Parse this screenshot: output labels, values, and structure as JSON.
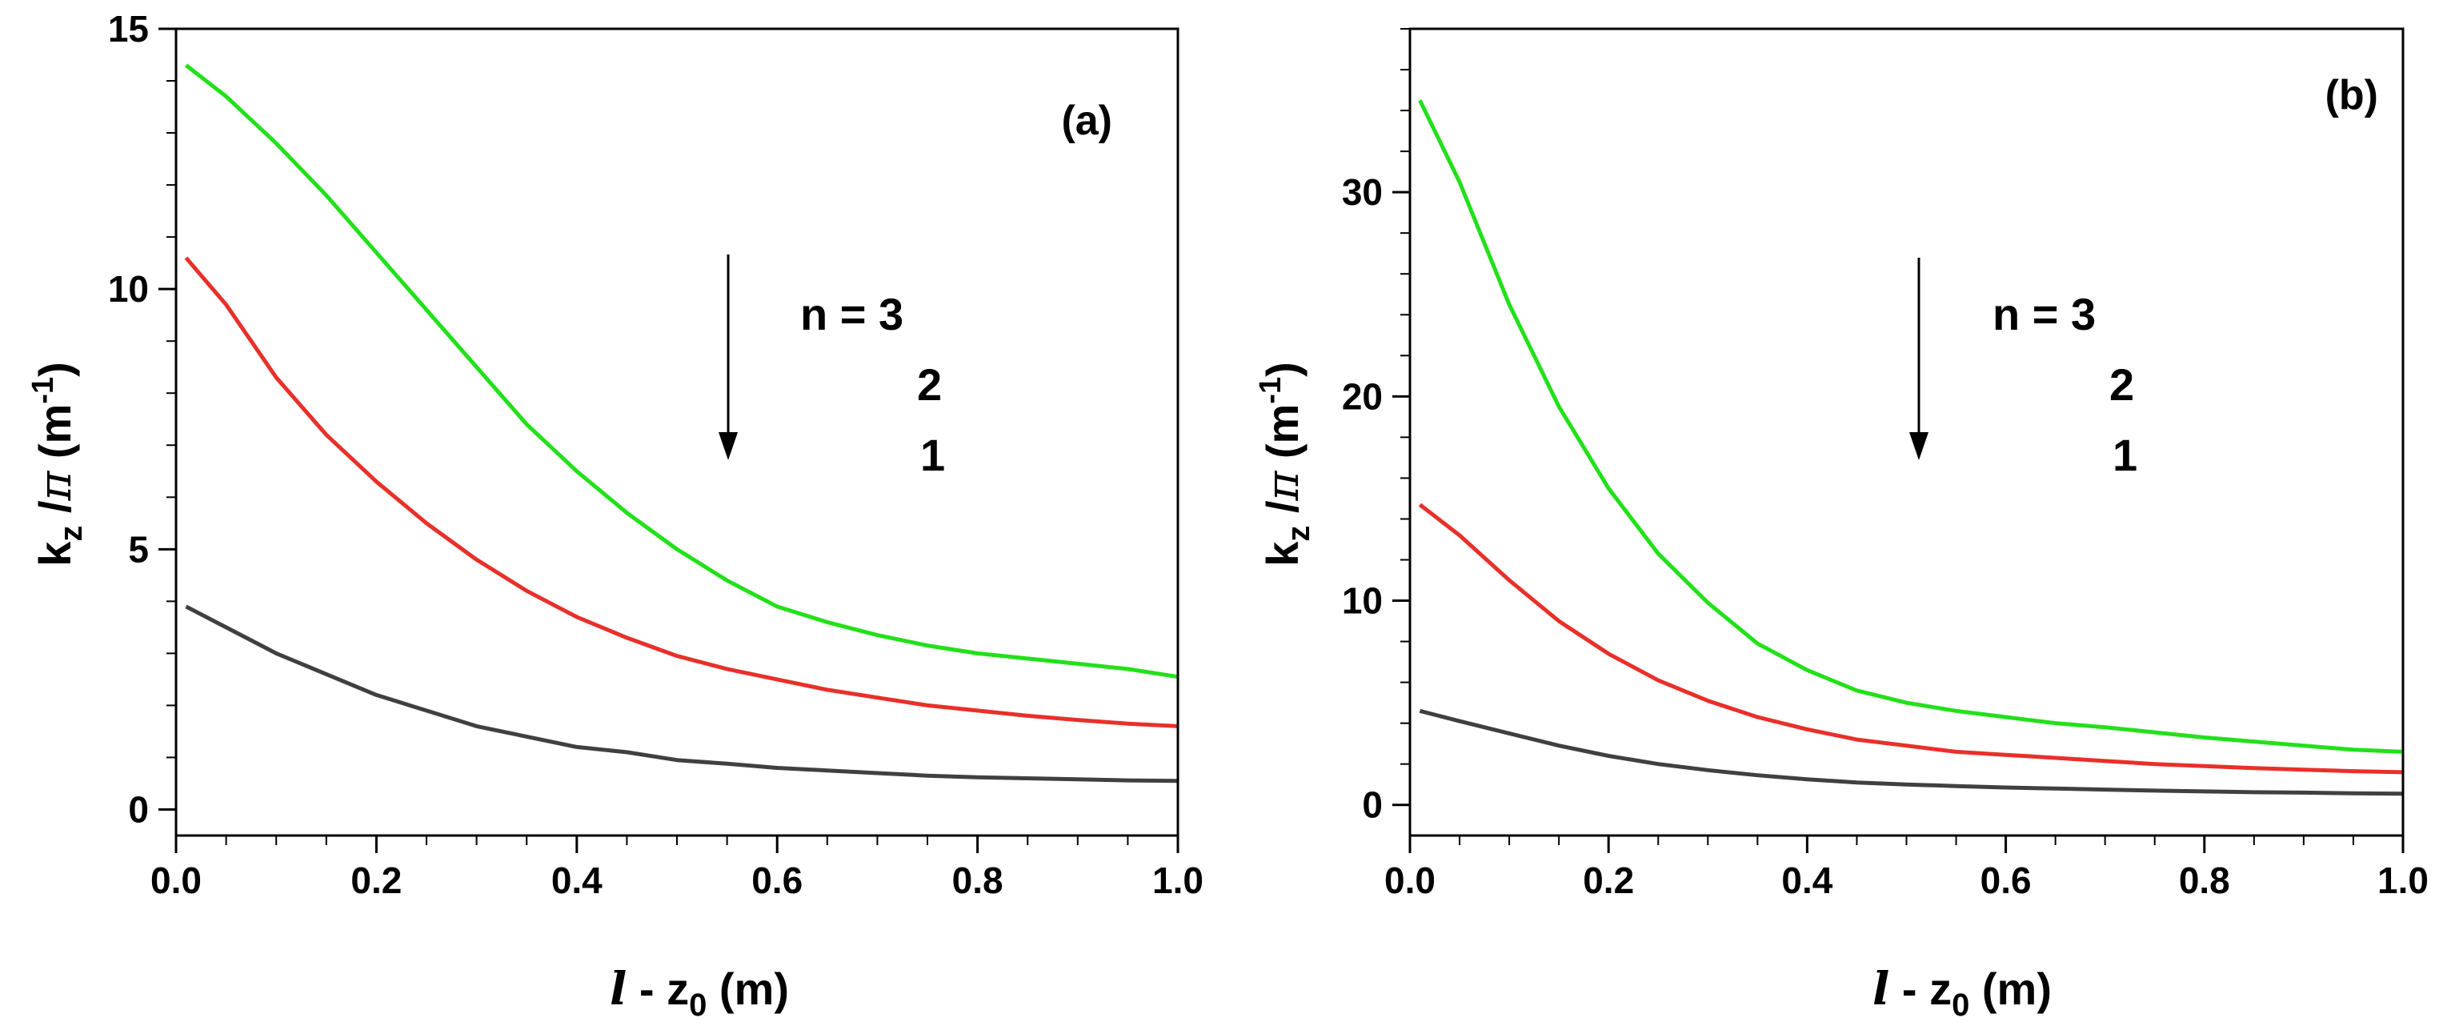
{
  "chart_data": [
    {
      "type": "line",
      "panel_label": "(a)",
      "xlabel": {
        "italic": "l",
        "pre": " - z",
        "sub": "0",
        "post": " (m)"
      },
      "ylabel": {
        "base": "k",
        "sub": "z",
        "mid": " /",
        "greek": "π",
        "unit": " (m",
        "sup": "-1",
        "close": ")"
      },
      "xlim": [
        0,
        1.0
      ],
      "ylim": [
        -0.5,
        15
      ],
      "xticks": [
        0.0,
        0.2,
        0.4,
        0.6,
        0.8,
        1.0
      ],
      "xtick_labels": [
        "0.0",
        "0.2",
        "0.4",
        "0.6",
        "0.8",
        "1.0"
      ],
      "yticks": [
        0,
        5,
        10,
        15
      ],
      "ytick_labels": [
        "0",
        "5",
        "10",
        "15"
      ],
      "x": [
        0.01,
        0.05,
        0.1,
        0.15,
        0.2,
        0.25,
        0.3,
        0.35,
        0.4,
        0.45,
        0.5,
        0.55,
        0.6,
        0.65,
        0.7,
        0.75,
        0.8,
        0.85,
        0.9,
        0.95,
        1.0
      ],
      "series": [
        {
          "name": "n = 3",
          "color": "#22e01a",
          "values": [
            14.3,
            13.7,
            12.8,
            11.8,
            10.7,
            9.6,
            8.5,
            7.4,
            6.5,
            5.7,
            5.0,
            4.4,
            3.9,
            3.6,
            3.35,
            3.15,
            3.0,
            2.9,
            2.8,
            2.7,
            2.55
          ]
        },
        {
          "name": "n = 2",
          "color": "#e8302a",
          "values": [
            10.6,
            9.7,
            8.3,
            7.2,
            6.3,
            5.5,
            4.8,
            4.2,
            3.7,
            3.3,
            2.95,
            2.7,
            2.5,
            2.3,
            2.15,
            2.0,
            1.9,
            1.8,
            1.72,
            1.65,
            1.6
          ]
        },
        {
          "name": "n = 1",
          "color": "#404040",
          "values": [
            3.9,
            3.5,
            3.0,
            2.6,
            2.2,
            1.9,
            1.6,
            1.4,
            1.2,
            1.1,
            0.95,
            0.88,
            0.8,
            0.75,
            0.7,
            0.65,
            0.62,
            0.6,
            0.58,
            0.56,
            0.55
          ]
        }
      ],
      "legend": {
        "lines": [
          "n = 3",
          "2",
          "1"
        ],
        "arrow": "down",
        "placement": "center-right"
      }
    },
    {
      "type": "line",
      "panel_label": "(b)",
      "xlabel": {
        "italic": "l",
        "pre": " - z",
        "sub": "0",
        "post": " (m)"
      },
      "ylabel": {
        "base": "k",
        "sub": "z",
        "mid": " /",
        "greek": "π",
        "unit": " (m",
        "sup": "-1",
        "close": ")"
      },
      "xlim": [
        0,
        1.0
      ],
      "ylim": [
        -1.5,
        38
      ],
      "xticks": [
        0.0,
        0.2,
        0.4,
        0.6,
        0.8,
        1.0
      ],
      "xtick_labels": [
        "0.0",
        "0.2",
        "0.4",
        "0.6",
        "0.8",
        "1.0"
      ],
      "yticks": [
        0,
        10,
        20,
        30
      ],
      "ytick_labels": [
        "0",
        "10",
        "20",
        "30"
      ],
      "x": [
        0.01,
        0.05,
        0.1,
        0.15,
        0.2,
        0.25,
        0.3,
        0.35,
        0.4,
        0.45,
        0.5,
        0.55,
        0.6,
        0.65,
        0.7,
        0.75,
        0.8,
        0.85,
        0.9,
        0.95,
        1.0
      ],
      "series": [
        {
          "name": "n = 3",
          "color": "#22e01a",
          "values": [
            34.5,
            30.5,
            24.5,
            19.5,
            15.5,
            12.3,
            9.9,
            7.9,
            6.6,
            5.6,
            5.0,
            4.6,
            4.3,
            4.0,
            3.8,
            3.55,
            3.3,
            3.1,
            2.9,
            2.7,
            2.6
          ]
        },
        {
          "name": "n = 2",
          "color": "#e8302a",
          "values": [
            14.7,
            13.2,
            11.0,
            9.0,
            7.4,
            6.1,
            5.1,
            4.3,
            3.7,
            3.2,
            2.9,
            2.6,
            2.45,
            2.3,
            2.15,
            2.0,
            1.9,
            1.8,
            1.72,
            1.65,
            1.6
          ]
        },
        {
          "name": "n = 1",
          "color": "#404040",
          "values": [
            4.6,
            4.1,
            3.5,
            2.9,
            2.4,
            2.0,
            1.7,
            1.45,
            1.25,
            1.1,
            1.0,
            0.92,
            0.85,
            0.8,
            0.75,
            0.7,
            0.66,
            0.62,
            0.6,
            0.57,
            0.55
          ]
        }
      ],
      "legend": {
        "lines": [
          "n = 3",
          "2",
          "1"
        ],
        "arrow": "down",
        "placement": "center-right"
      }
    }
  ]
}
